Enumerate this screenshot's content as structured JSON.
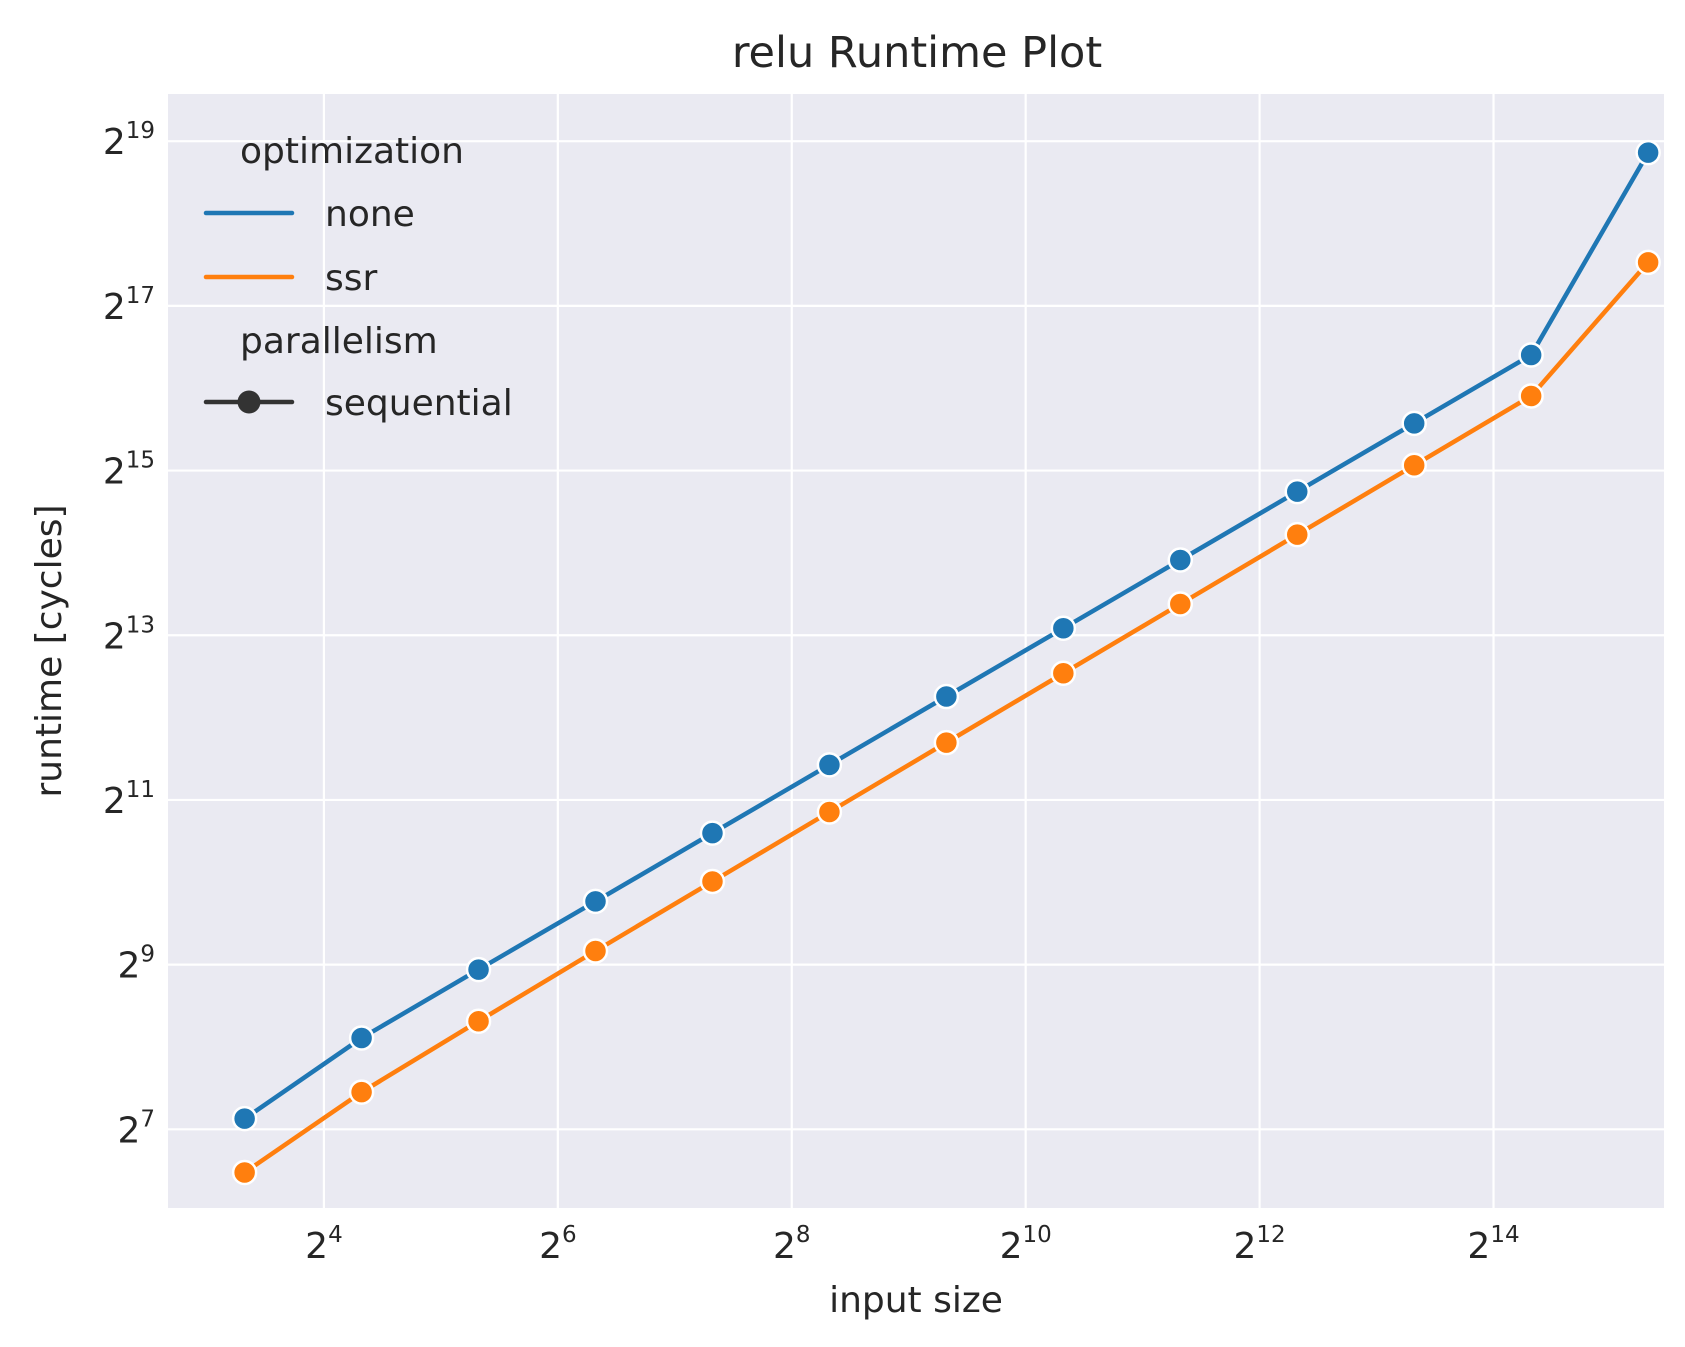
{
  "chart_data": {
    "type": "line",
    "title": "relu Runtime Plot",
    "xlabel": "input size",
    "ylabel": "runtime [cycles]",
    "x_scale": "log2",
    "y_scale": "log2",
    "grid": true,
    "background": "#EAEAF2",
    "xlim": [
      6.35,
      45000
    ],
    "ylim": [
      66,
      780000
    ],
    "x_ticks": [
      {
        "base": "2",
        "exp": "4",
        "value": 16
      },
      {
        "base": "2",
        "exp": "6",
        "value": 64
      },
      {
        "base": "2",
        "exp": "8",
        "value": 256
      },
      {
        "base": "2",
        "exp": "10",
        "value": 1024
      },
      {
        "base": "2",
        "exp": "12",
        "value": 4096
      },
      {
        "base": "2",
        "exp": "14",
        "value": 16384
      }
    ],
    "y_ticks": [
      {
        "base": "2",
        "exp": "7",
        "value": 128
      },
      {
        "base": "2",
        "exp": "9",
        "value": 512
      },
      {
        "base": "2",
        "exp": "11",
        "value": 2048
      },
      {
        "base": "2",
        "exp": "13",
        "value": 8192
      },
      {
        "base": "2",
        "exp": "15",
        "value": 32768
      },
      {
        "base": "2",
        "exp": "17",
        "value": 131072
      },
      {
        "base": "2",
        "exp": "19",
        "value": 524288
      }
    ],
    "x": [
      10,
      20,
      40,
      80,
      160,
      320,
      640,
      1280,
      2560,
      5120,
      10240,
      20480,
      40960
    ],
    "series": [
      {
        "name": "none",
        "color": "#1F77B4",
        "marker": "circle",
        "values": [
          140,
          276,
          491,
          872,
          1549,
          2752,
          4890,
          8689,
          15440,
          27440,
          48760,
          86660,
          476000
        ]
      },
      {
        "name": "ssr",
        "color": "#FF7F0E",
        "marker": "circle",
        "values": [
          89,
          175,
          318,
          574,
          1031,
          1851,
          3319,
          5948,
          10660,
          19110,
          34260,
          61390,
          189000
        ]
      }
    ],
    "legend": {
      "placement": "upper-left",
      "sections": [
        {
          "title": "optimization",
          "entries": [
            {
              "label": "none",
              "color": "#1F77B4",
              "style": "line"
            },
            {
              "label": "ssr",
              "color": "#FF7F0E",
              "style": "line"
            }
          ]
        },
        {
          "title": "parallelism",
          "entries": [
            {
              "label": "sequential",
              "color": "#333333",
              "style": "line-marker"
            }
          ]
        }
      ]
    }
  }
}
